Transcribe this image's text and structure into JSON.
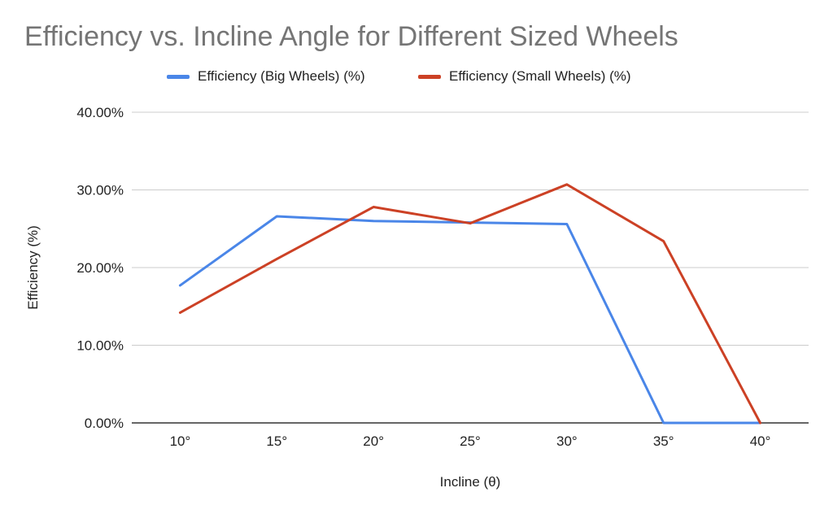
{
  "chart_data": {
    "type": "line",
    "title": "Efficiency vs. Incline Angle for Different Sized Wheels",
    "xlabel": "Incline (θ)",
    "ylabel": "Efficiency (%)",
    "categories": [
      "10°",
      "15°",
      "20°",
      "25°",
      "30°",
      "35°",
      "40°"
    ],
    "y_ticks": [
      "0.00%",
      "10.00%",
      "20.00%",
      "30.00%",
      "40.00%"
    ],
    "ylim": [
      0,
      40
    ],
    "grid": true,
    "legend_position": "top",
    "series": [
      {
        "name": "Efficiency (Big Wheels) (%)",
        "color": "#4a86e8",
        "values": [
          17.7,
          26.6,
          26.0,
          25.8,
          25.6,
          0,
          0
        ]
      },
      {
        "name": "Efficiency (Small Wheels) (%)",
        "color": "#cc4125",
        "values": [
          14.2,
          21.1,
          27.8,
          25.7,
          30.7,
          23.4,
          0
        ]
      }
    ]
  }
}
